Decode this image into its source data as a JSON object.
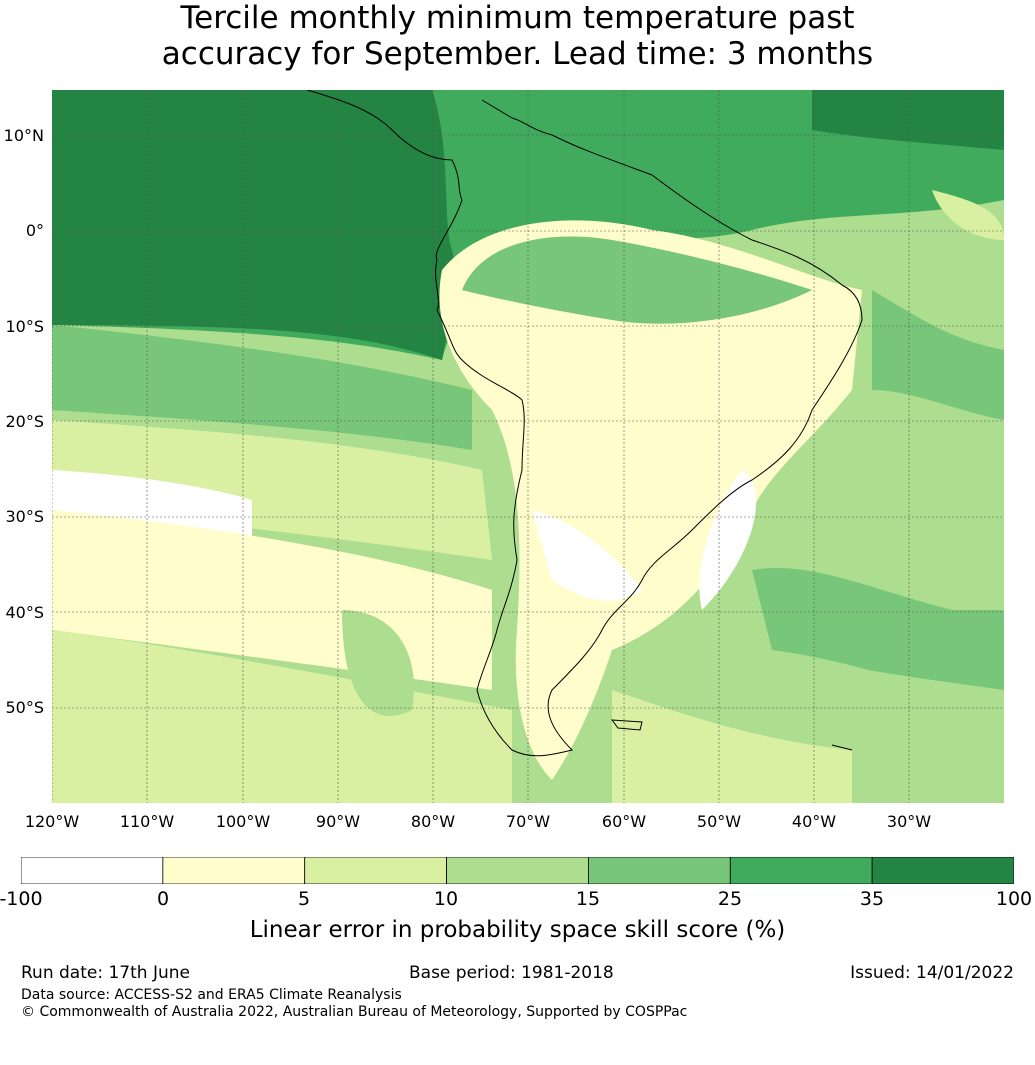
{
  "title": {
    "line1": "Tercile monthly minimum temperature past",
    "line2": "accuracy for September. Lead time: 3 months"
  },
  "axes": {
    "lat_labels": [
      "10°N",
      "0°",
      "10°S",
      "20°S",
      "30°S",
      "40°S",
      "50°S"
    ],
    "lon_labels": [
      "120°W",
      "110°W",
      "100°W",
      "90°W",
      "80°W",
      "70°W",
      "60°W",
      "50°W",
      "40°W",
      "30°W"
    ]
  },
  "colorbar": {
    "ticks": [
      "-100",
      "0",
      "5",
      "10",
      "15",
      "25",
      "35",
      "100"
    ],
    "colors": [
      "#ffffff",
      "#fffdcc",
      "#d9f0a3",
      "#addd8e",
      "#78c679",
      "#41ab5d",
      "#238443"
    ],
    "label": "Linear error in probability space skill score (%)"
  },
  "footer": {
    "run_date": "Run date: 17th June",
    "base_period": "Base period: 1981-2018",
    "issued": "Issued: 14/01/2022",
    "data_source": "Data source: ACCESS-S2 and ERA5 Climate Reanalysis",
    "copyright": "© Commonwealth of Australia 2022, Australian Bureau of Meteorology, Supported by COSPPac"
  }
}
